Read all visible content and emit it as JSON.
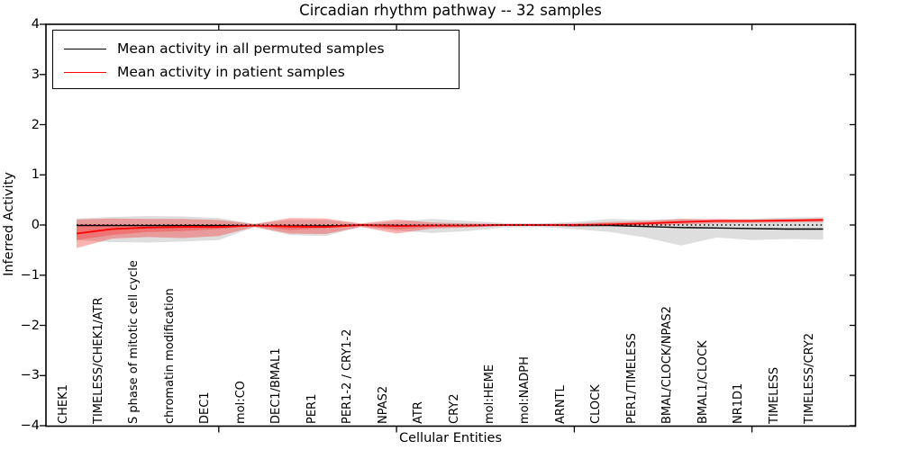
{
  "chart": {
    "title": "Circadian rhythm pathway -- 32 samples",
    "xlabel": "Cellular Entities",
    "ylabel": "Inferred Activity"
  },
  "legend": {
    "items": [
      {
        "label": "Mean activity in all permuted samples",
        "color": "#000000",
        "style": "solid-line"
      },
      {
        "label": "Mean activity in patient samples",
        "color": "#ff0000",
        "style": "solid-line"
      }
    ],
    "position": "upper-left",
    "border": "#000000"
  },
  "chart_data": {
    "type": "line",
    "title": "Circadian rhythm pathway -- 32 samples",
    "xlabel": "Cellular Entities",
    "ylabel": "Inferred Activity",
    "ylim": [
      -4,
      4
    ],
    "yticks": [
      "4",
      "3",
      "2",
      "1",
      "0",
      "−1",
      "−2",
      "−3",
      "−4"
    ],
    "ytick_values": [
      4,
      3,
      2,
      1,
      0,
      -1,
      -2,
      -3,
      -4
    ],
    "numeric_xtick_indices": [
      4,
      9,
      14,
      19
    ],
    "grid": false,
    "categories": [
      "CHEK1",
      "TIMELESS/CHEK1/ATR",
      "S phase of mitotic cell cycle",
      "chromatin modification",
      "DEC1",
      "mol:CO",
      "DEC1/BMAL1",
      "PER1",
      "PER1-2 / CRY1-2",
      "NPAS2",
      "ATR",
      "CRY2",
      "mol:HEME",
      "mol:NADPH",
      "ARNTL",
      "CLOCK",
      "PER1/TIMELESS",
      "BMAL/CLOCK/NPAS2",
      "BMAL1/CLOCK",
      "NR1D1",
      "TIMELESS",
      "TIMELESS/CRY2"
    ],
    "series": [
      {
        "name": "Mean activity in all permuted samples",
        "color": "#000000",
        "values": [
          -0.01,
          -0.01,
          -0.01,
          -0.01,
          -0.01,
          -0.01,
          -0.02,
          -0.02,
          0.0,
          -0.01,
          -0.01,
          -0.01,
          0.0,
          0.0,
          -0.01,
          -0.01,
          -0.03,
          -0.05,
          -0.06,
          -0.07,
          -0.08,
          -0.08
        ],
        "band_upper": [
          0.13,
          0.16,
          0.18,
          0.17,
          0.14,
          0.02,
          0.1,
          0.1,
          0.02,
          0.07,
          0.12,
          0.08,
          0.04,
          0.03,
          0.06,
          0.12,
          0.1,
          0.12,
          0.1,
          0.12,
          0.15,
          0.16
        ],
        "band_lower": [
          -0.3,
          -0.34,
          -0.35,
          -0.33,
          -0.3,
          -0.04,
          -0.2,
          -0.22,
          -0.03,
          -0.11,
          -0.16,
          -0.12,
          -0.05,
          -0.04,
          -0.08,
          -0.14,
          -0.25,
          -0.41,
          -0.25,
          -0.3,
          -0.28,
          -0.29
        ],
        "band_color": "rgba(0,0,0,0.13)"
      },
      {
        "name": "Mean activity in patient samples",
        "color": "#ff0000",
        "values": [
          -0.17,
          -0.08,
          -0.05,
          -0.04,
          -0.04,
          -0.01,
          -0.03,
          -0.04,
          0.0,
          -0.02,
          -0.01,
          -0.01,
          0.0,
          0.0,
          0.0,
          0.01,
          0.03,
          0.06,
          0.08,
          0.08,
          0.09,
          0.1
        ],
        "band_upper": [
          0.11,
          0.13,
          0.12,
          0.12,
          0.1,
          0.02,
          0.14,
          0.13,
          0.03,
          0.11,
          0.05,
          0.03,
          0.02,
          0.02,
          0.03,
          0.06,
          0.08,
          0.12,
          0.12,
          0.11,
          0.12,
          0.13
        ],
        "band_lower": [
          -0.46,
          -0.27,
          -0.24,
          -0.26,
          -0.22,
          -0.04,
          -0.17,
          -0.18,
          -0.04,
          -0.17,
          -0.07,
          -0.05,
          -0.02,
          -0.02,
          -0.03,
          -0.01,
          -0.01,
          0.01,
          0.03,
          0.04,
          0.05,
          0.06
        ],
        "band_color": "rgba(255,0,0,0.30)",
        "inner_band_upper": [
          0.02,
          0.01,
          0.0,
          0.0,
          0.0,
          0.0,
          0.01,
          0.0,
          0.01,
          0.01,
          0.0,
          0.0,
          0.01,
          0.01,
          0.01,
          0.02,
          0.04,
          0.07,
          0.09,
          0.09,
          0.1,
          0.11
        ],
        "inner_band_lower": [
          -0.3,
          -0.2,
          -0.14,
          -0.12,
          -0.08,
          -0.02,
          -0.1,
          -0.06,
          -0.02,
          -0.08,
          -0.04,
          -0.03,
          -0.01,
          -0.01,
          -0.02,
          0.0,
          0.02,
          0.05,
          0.07,
          0.07,
          0.08,
          0.09
        ],
        "inner_band_color": "rgba(255,0,0,0.25)"
      }
    ],
    "reference_line": {
      "y": 0,
      "style": "dotted",
      "color": "#000000"
    },
    "legend_position": "upper left"
  }
}
